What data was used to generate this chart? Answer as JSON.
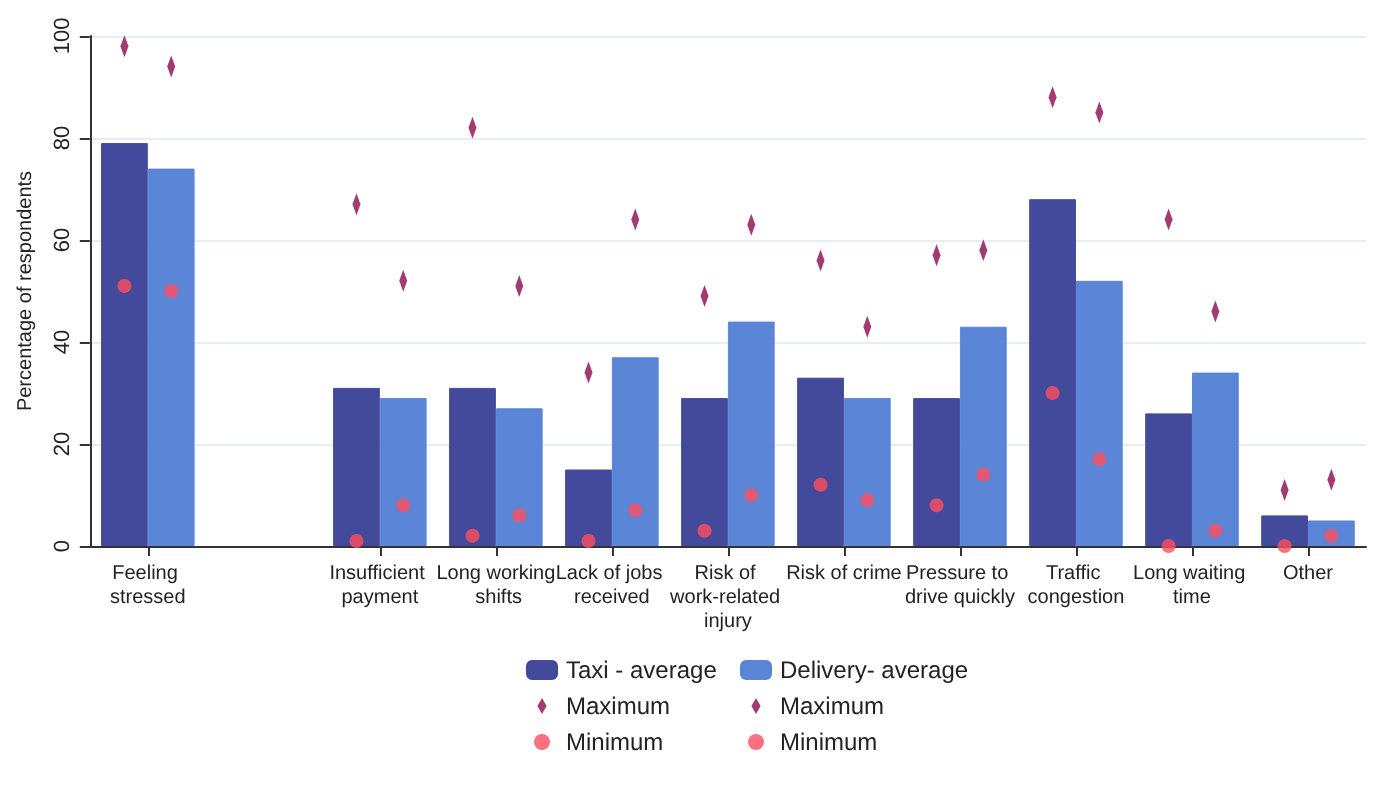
{
  "chart_data": {
    "type": "bar",
    "ylabel": "Percentage of respondents",
    "categories": [
      "Feeling stressed",
      null,
      "Insufficient payment",
      "Long working shifts",
      "Lack of jobs received",
      "Risk of work-related injury",
      "Risk of crime",
      "Pressure to drive quickly",
      "Traffic congestion",
      "Long waiting time",
      "Other"
    ],
    "series": [
      {
        "name": "Taxi - average",
        "color": "#434a9c",
        "values": [
          79,
          null,
          31,
          31,
          15,
          29,
          33,
          29,
          68,
          26,
          6
        ]
      },
      {
        "name": "Delivery- average",
        "color": "#5b85d6",
        "values": [
          74,
          null,
          29,
          27,
          37,
          44,
          29,
          43,
          52,
          34,
          5
        ]
      },
      {
        "name": "Maximum",
        "type": "scatter",
        "marker": "diamond",
        "color": "#8b0a50",
        "values": [
          98,
          null,
          67,
          82,
          34,
          49,
          56,
          57,
          88,
          64,
          11
        ]
      },
      {
        "name": "Maximum",
        "type": "scatter",
        "marker": "diamond",
        "color": "#8b0a50",
        "values": [
          94,
          null,
          52,
          51,
          64,
          63,
          43,
          58,
          85,
          46,
          13
        ]
      },
      {
        "name": "Minimum",
        "type": "scatter",
        "marker": "circle",
        "color": "#ff4d5e",
        "values": [
          51,
          null,
          1,
          2,
          1,
          3,
          12,
          8,
          30,
          0,
          0
        ]
      },
      {
        "name": "Minimum",
        "type": "scatter",
        "marker": "circle",
        "color": "#ff4d5e",
        "values": [
          50,
          null,
          8,
          6,
          7,
          10,
          9,
          14,
          17,
          3,
          2
        ]
      }
    ],
    "ylim": [
      0,
      100
    ],
    "yticks": [
      0,
      20,
      40,
      60,
      80,
      100
    ],
    "grid": "y",
    "legend": "bottom"
  }
}
